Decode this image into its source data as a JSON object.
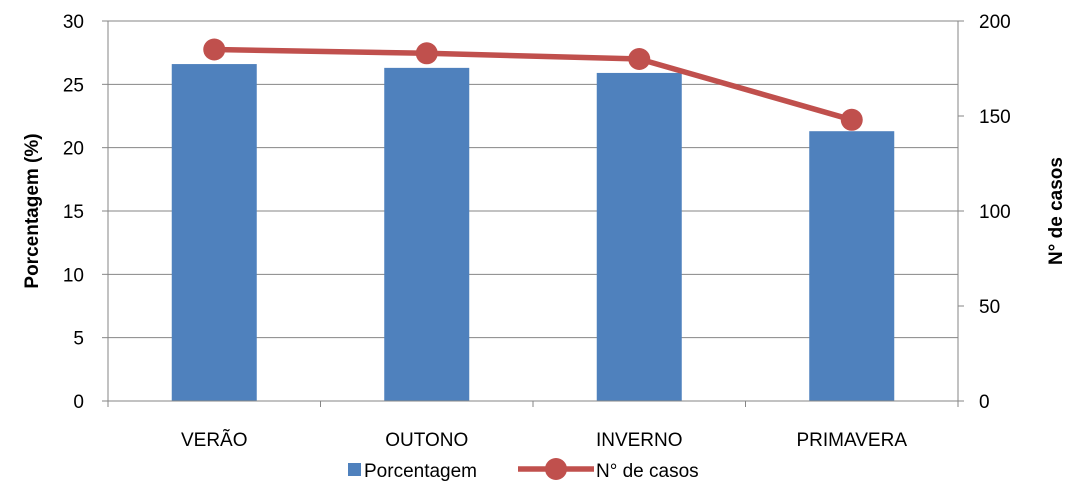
{
  "chart_data": {
    "type": "bar",
    "categories": [
      "VERÃO",
      "OUTONO",
      "INVERNO",
      "PRIMAVERA"
    ],
    "series": [
      {
        "name": "Porcentagem",
        "type": "bar",
        "axis": "left",
        "color": "#4f81bd",
        "values": [
          26.6,
          26.3,
          25.9,
          21.3
        ]
      },
      {
        "name": "N° de casos",
        "type": "line",
        "axis": "right",
        "color": "#c0504d",
        "values": [
          185,
          183,
          180,
          148
        ]
      }
    ],
    "ylabel": "Porcentagem (%)",
    "y2label": "N° de casos",
    "ylim": [
      0,
      30
    ],
    "y2lim": [
      0,
      200
    ],
    "yticks": [
      0,
      5,
      10,
      15,
      20,
      25,
      30
    ],
    "y2ticks": [
      0,
      50,
      100,
      150,
      200
    ],
    "grid": true,
    "legend_position": "bottom"
  }
}
